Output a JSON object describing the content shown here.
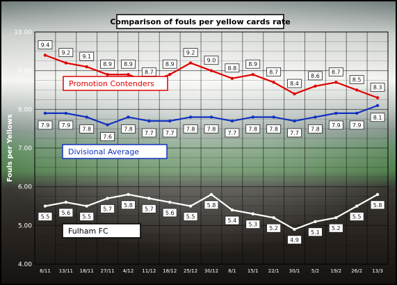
{
  "chart_data": {
    "type": "line",
    "title": "Comparison of fouls per yellow cards rate",
    "ylabel": "Fouls per Yellows",
    "xlabel": "",
    "ylim": [
      4.0,
      10.0
    ],
    "yticks": [
      "4.00",
      "5.00",
      "6.00",
      "7.00",
      "8.00",
      "9.00",
      "10.00"
    ],
    "categories": [
      "6/11",
      "13/11",
      "18/11",
      "27/11",
      "4/12",
      "11/12",
      "18/12",
      "25/12",
      "30/12",
      "8/1",
      "15/1",
      "22/1",
      "30/1",
      "5/2",
      "19/2",
      "26/2",
      "13/3"
    ],
    "grid": true,
    "series": [
      {
        "name": "Promotion Contenders",
        "color": "#e00000",
        "values": [
          9.4,
          9.2,
          9.1,
          8.9,
          8.9,
          8.7,
          8.9,
          9.2,
          9.0,
          8.8,
          8.9,
          8.7,
          8.4,
          8.6,
          8.7,
          8.5,
          8.3
        ]
      },
      {
        "name": "Divisional Average",
        "color": "#1030c0",
        "values": [
          7.9,
          7.9,
          7.8,
          7.6,
          7.8,
          7.7,
          7.7,
          7.8,
          7.8,
          7.7,
          7.8,
          7.8,
          7.7,
          7.8,
          7.9,
          7.9,
          8.1
        ]
      },
      {
        "name": "Fulham FC",
        "color": "#ffffff",
        "values": [
          5.5,
          5.6,
          5.5,
          5.7,
          5.8,
          5.7,
          5.6,
          5.5,
          5.8,
          5.4,
          5.3,
          5.2,
          4.9,
          5.1,
          5.2,
          5.5,
          5.8
        ]
      }
    ]
  }
}
